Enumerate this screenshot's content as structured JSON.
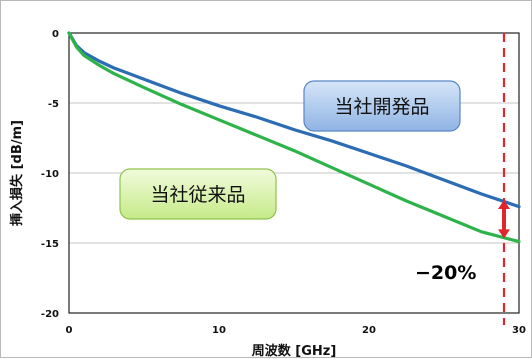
{
  "chart_data": {
    "type": "line",
    "xlabel": "周波数 [GHz]",
    "ylabel": "挿入損失 [dB/m]",
    "xlim": [
      0,
      30
    ],
    "ylim": [
      -20,
      0
    ],
    "x_ticks": [
      "0",
      "10",
      "20",
      "30"
    ],
    "y_ticks": [
      "0",
      "-5",
      "-10",
      "-15",
      "-20"
    ],
    "grid": "horizontal",
    "series": [
      {
        "name": "当社開発品",
        "color": "#2b6cb3",
        "x": [
          0,
          0.5,
          1,
          2,
          3,
          5,
          7.5,
          10,
          12.5,
          15,
          17.5,
          20,
          22.5,
          25,
          27.5,
          30
        ],
        "y": [
          0,
          -0.9,
          -1.4,
          -2.0,
          -2.5,
          -3.3,
          -4.3,
          -5.2,
          -6.0,
          -6.9,
          -7.7,
          -8.6,
          -9.5,
          -10.5,
          -11.5,
          -12.4
        ]
      },
      {
        "name": "当社従来品",
        "color": "#2db34a",
        "x": [
          0,
          0.5,
          1,
          2,
          3,
          5,
          7.5,
          10,
          12.5,
          15,
          17.5,
          20,
          22.5,
          25,
          27.5,
          30
        ],
        "y": [
          0,
          -1.0,
          -1.6,
          -2.3,
          -2.9,
          -3.9,
          -5.1,
          -6.2,
          -7.3,
          -8.4,
          -9.6,
          -10.8,
          -12.0,
          -13.1,
          -14.2,
          -14.9
        ]
      }
    ],
    "annotations": {
      "marker_x": 29,
      "marker_color": "#e0262a",
      "arrow_from": -12.0,
      "arrow_to": -14.6,
      "percent_label": "−20%"
    },
    "label_box_fill": {
      "当社開発品": "#a9c6ec",
      "当社従来品": "#d9f2ad"
    }
  }
}
